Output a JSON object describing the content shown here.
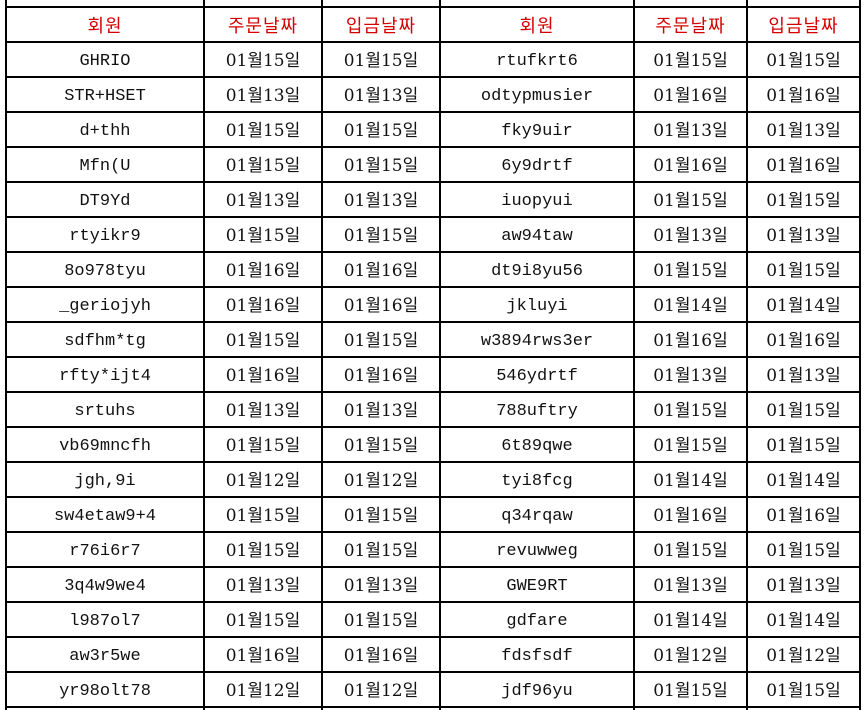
{
  "header": [
    "회원",
    "주문날짜",
    "입금날짜",
    "회원",
    "주문날짜",
    "입금날짜"
  ],
  "rows": [
    [
      "GHRIO",
      "01월15일",
      "01월15일",
      "rtufkrt6",
      "01월15일",
      "01월15일"
    ],
    [
      "STR+HSET",
      "01월13일",
      "01월13일",
      "odtypmusier",
      "01월16일",
      "01월16일"
    ],
    [
      "d+thh",
      "01월15일",
      "01월15일",
      "fky9uir",
      "01월13일",
      "01월13일"
    ],
    [
      "Mfn(U",
      "01월15일",
      "01월15일",
      "6y9drtf",
      "01월16일",
      "01월16일"
    ],
    [
      "DT9Yd",
      "01월13일",
      "01월13일",
      "iuopyui",
      "01월15일",
      "01월15일"
    ],
    [
      "rtyikr9",
      "01월15일",
      "01월15일",
      "aw94taw",
      "01월13일",
      "01월13일"
    ],
    [
      "8o978tyu",
      "01월16일",
      "01월16일",
      "dt9i8yu56",
      "01월15일",
      "01월15일"
    ],
    [
      "_geriojyh",
      "01월16일",
      "01월16일",
      "jkluyi",
      "01월14일",
      "01월14일"
    ],
    [
      "sdfhm*tg",
      "01월15일",
      "01월15일",
      "w3894rws3er",
      "01월16일",
      "01월16일"
    ],
    [
      "rfty*ijt4",
      "01월16일",
      "01월16일",
      "546ydrtf",
      "01월13일",
      "01월13일"
    ],
    [
      "srtuhs",
      "01월13일",
      "01월13일",
      "788uftry",
      "01월15일",
      "01월15일"
    ],
    [
      "vb69mncfh",
      "01월15일",
      "01월15일",
      "6t89qwe",
      "01월15일",
      "01월15일"
    ],
    [
      "jgh,9i",
      "01월12일",
      "01월12일",
      "tyi8fcg",
      "01월14일",
      "01월14일"
    ],
    [
      "sw4etaw9+4",
      "01월15일",
      "01월15일",
      "q34rqaw",
      "01월16일",
      "01월16일"
    ],
    [
      "r76i6r7",
      "01월15일",
      "01월15일",
      "revuwweg",
      "01월15일",
      "01월15일"
    ],
    [
      "3q4w9we4",
      "01월13일",
      "01월13일",
      "GWE9RT",
      "01월13일",
      "01월13일"
    ],
    [
      "l987ol7",
      "01월15일",
      "01월15일",
      "gdfare",
      "01월14일",
      "01월14일"
    ],
    [
      "aw3r5we",
      "01월16일",
      "01월16일",
      "fdsfsdf",
      "01월12일",
      "01월12일"
    ],
    [
      "yr98olt78",
      "01월12일",
      "01월12일",
      "jdf96yu",
      "01월15일",
      "01월15일"
    ]
  ],
  "colors": {
    "header_text": "#d40000",
    "grid": "#000000"
  }
}
